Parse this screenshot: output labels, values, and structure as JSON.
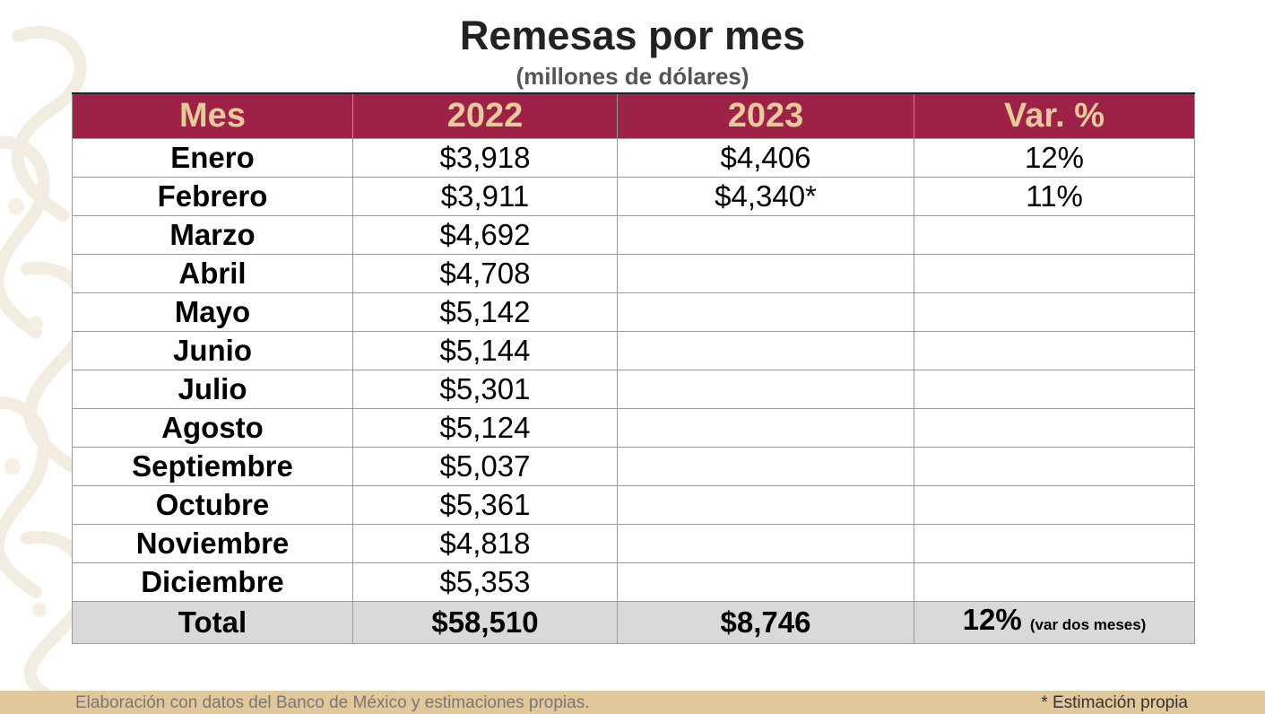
{
  "title": "Remesas por mes",
  "subtitle": "(millones de dólares)",
  "table": {
    "headers": [
      "Mes",
      "2022",
      "2023",
      "Var. %"
    ],
    "rows": [
      {
        "mes": "Enero",
        "y2022": "$3,918",
        "y2023": "$4,406",
        "var": "12%"
      },
      {
        "mes": "Febrero",
        "y2022": "$3,911",
        "y2023": "$4,340*",
        "var": "11%"
      },
      {
        "mes": "Marzo",
        "y2022": "$4,692",
        "y2023": "",
        "var": ""
      },
      {
        "mes": "Abril",
        "y2022": "$4,708",
        "y2023": "",
        "var": ""
      },
      {
        "mes": "Mayo",
        "y2022": "$5,142",
        "y2023": "",
        "var": ""
      },
      {
        "mes": "Junio",
        "y2022": "$5,144",
        "y2023": "",
        "var": ""
      },
      {
        "mes": "Julio",
        "y2022": "$5,301",
        "y2023": "",
        "var": ""
      },
      {
        "mes": "Agosto",
        "y2022": "$5,124",
        "y2023": "",
        "var": ""
      },
      {
        "mes": "Septiembre",
        "y2022": "$5,037",
        "y2023": "",
        "var": ""
      },
      {
        "mes": "Octubre",
        "y2022": "$5,361",
        "y2023": "",
        "var": ""
      },
      {
        "mes": "Noviembre",
        "y2022": "$4,818",
        "y2023": "",
        "var": ""
      },
      {
        "mes": "Diciembre",
        "y2022": "$5,353",
        "y2023": "",
        "var": ""
      }
    ],
    "total": {
      "label": "Total",
      "y2022": "$58,510",
      "y2023": "$8,746",
      "var": "12%",
      "var_note": "(var dos meses)"
    }
  },
  "footer": {
    "source": "Elaboración con datos del Banco de México y estimaciones propias.",
    "note": "* Estimación propia"
  },
  "colors": {
    "header_bg": "#9e2247",
    "header_text": "#e8c99b",
    "total_bg": "#d9d9d9",
    "footer_bar": "#e2c79a"
  }
}
